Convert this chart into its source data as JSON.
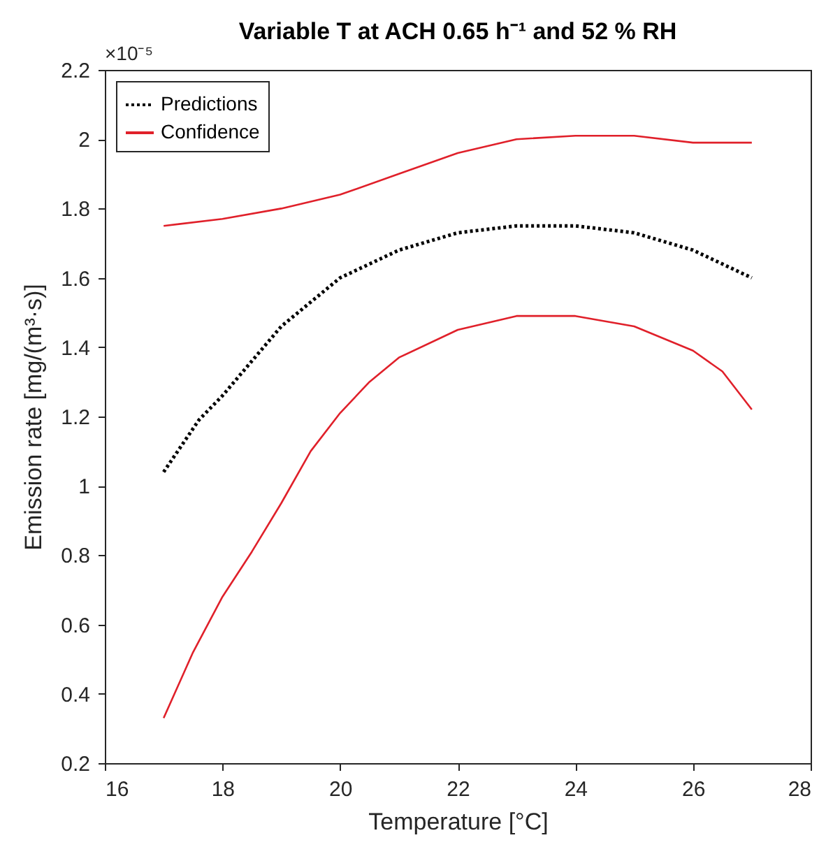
{
  "chart_data": {
    "type": "line",
    "title": "Variable T at ACH 0.65 h⁻¹ and 52 % RH",
    "xlabel": "Temperature [°C]",
    "ylabel": "Emission rate [mg/(m³·s)]",
    "annotations": [
      "×10⁻⁵"
    ],
    "xlim": [
      16,
      28
    ],
    "xticks": [
      16,
      18,
      20,
      22,
      24,
      26,
      28
    ],
    "ylim": [
      0.2,
      2.2
    ],
    "yticks": [
      0.2,
      0.4,
      0.6,
      0.8,
      1,
      1.2,
      1.4,
      1.6,
      1.8,
      2,
      2.2
    ],
    "grid": false,
    "legend": "top left",
    "marker": "none",
    "series": [
      {
        "name": "Predictions",
        "color": "#000000",
        "line_style": "dotted",
        "x": [
          17,
          17.6,
          18,
          19,
          20,
          21,
          22,
          23,
          24,
          25,
          26,
          27
        ],
        "values": [
          1.04,
          1.19,
          1.26,
          1.46,
          1.6,
          1.68,
          1.73,
          1.75,
          1.75,
          1.73,
          1.68,
          1.6
        ]
      },
      {
        "name": "Confidence",
        "color": "#e0202a",
        "line_style": "solid",
        "x": [
          17,
          18,
          19,
          20,
          21,
          22,
          23,
          24,
          25,
          26,
          27
        ],
        "values": [
          1.75,
          1.77,
          1.8,
          1.84,
          1.9,
          1.96,
          2,
          2.01,
          2.01,
          1.99,
          1.99
        ]
      },
      {
        "color": "#e0202a",
        "line_style": "solid",
        "x": [
          17,
          17.5,
          18,
          18.5,
          19,
          19.5,
          20,
          20.5,
          21,
          22,
          23,
          23.7,
          24,
          25,
          26,
          26.5,
          27
        ],
        "values": [
          0.33,
          0.52,
          0.68,
          0.81,
          0.95,
          1.1,
          1.21,
          1.3,
          1.37,
          1.45,
          1.49,
          1.49,
          1.49,
          1.46,
          1.39,
          1.33,
          1.22
        ]
      }
    ]
  }
}
